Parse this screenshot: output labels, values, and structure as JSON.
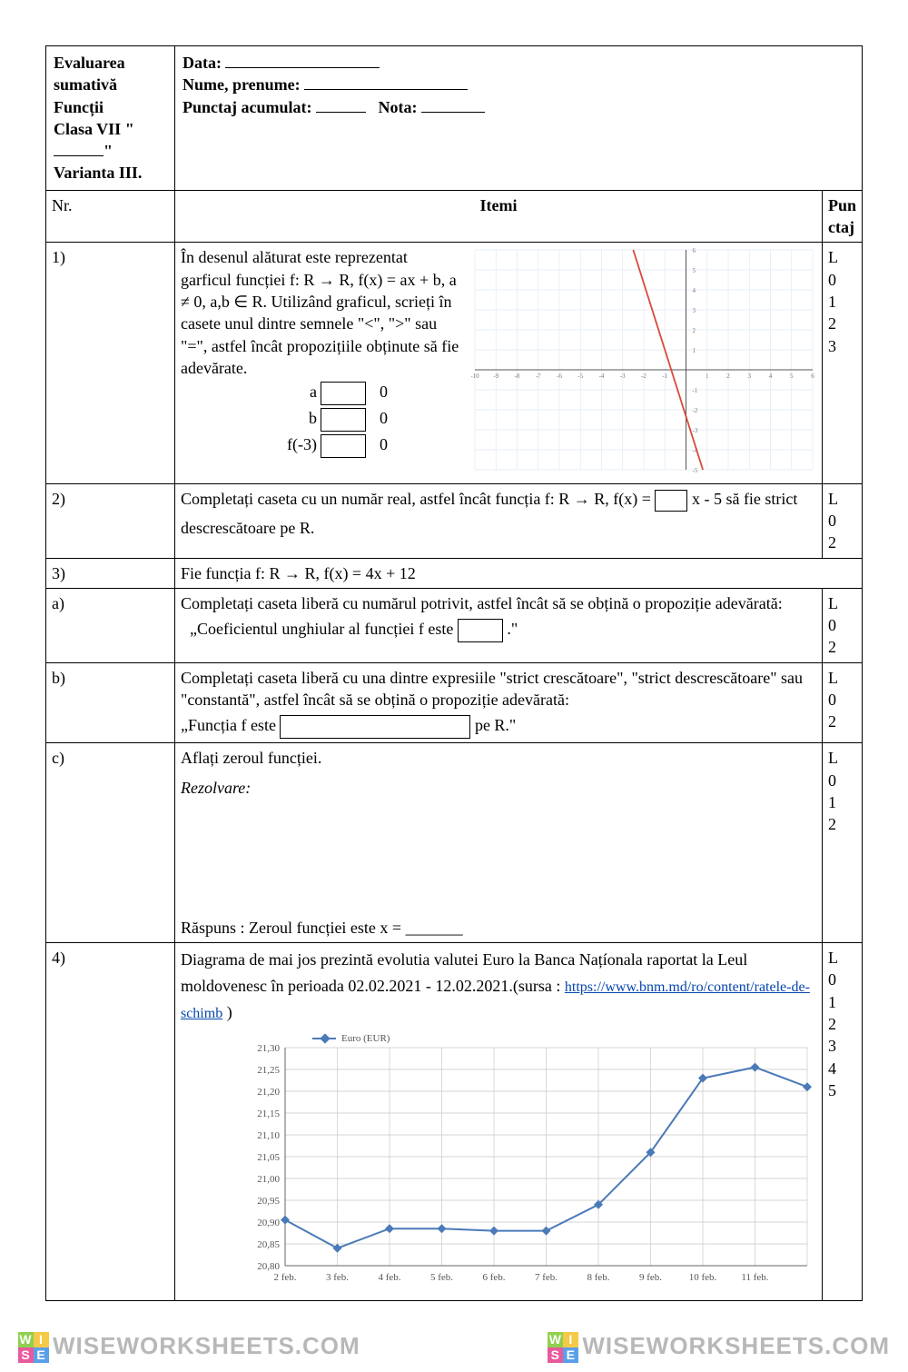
{
  "header": {
    "title_line1": "Evaluarea sumativă",
    "title_line2": "Funcții",
    "class_prefix": "Clasa VII \"",
    "class_suffix": "\"",
    "variant": "Varianta III.",
    "data_label": "Data:",
    "name_label": "Nume, prenume:",
    "score_label": "Punctaj acumulat:",
    "grade_label": "Nota:"
  },
  "columns": {
    "nr": "Nr.",
    "itemi": "Itemi",
    "punctaj": "Pun ctaj"
  },
  "item1": {
    "nr": "1)",
    "text_p1": "În desenul alăturat este reprezentat garficul funcției f: R → R, f(x) = ax + b, a ≠ 0, a,b ∈ R. Utilizând graficul, scrieți în casete unul dintre semnele \"<\", \">\" sau \"=\", astfel încât propozițiile obținute să fie adevărate.",
    "row_a_left": "a",
    "row_a_right": "0",
    "row_b_left": "b",
    "row_b_right": "0",
    "row_c_left": "f(-3)",
    "row_c_right": "0",
    "punctaj": "L\n0\n1\n2\n3",
    "graph": {
      "type": "line",
      "xlim": [
        -10,
        6
      ],
      "ylim": [
        -5,
        6
      ],
      "xtick_step": 1,
      "ytick_step": 1,
      "line_points": [
        [
          -2.5,
          6
        ],
        [
          0.8,
          -5
        ]
      ],
      "line_color": "#d94a3a",
      "line_width": 1.8,
      "grid_color": "#dfeaf4",
      "axis_color": "#555555",
      "tick_label_color": "#777777",
      "tick_fontsize": 7,
      "background_color": "#ffffff"
    }
  },
  "item2": {
    "nr": "2)",
    "text_before": "Completați caseta cu un număr real, astfel încât funcția f: R → R, f(x) = ",
    "text_after_box": " x  - 5 să fie strict",
    "text_line2": "descrescătoare pe R.",
    "punctaj": "L\n0\n2"
  },
  "item3": {
    "nr": "3)",
    "text": "Fie funcția f: R → R, f(x) = 4x + 12"
  },
  "item3a": {
    "nr": "a)",
    "line1": "Completați caseta liberă cu numărul potrivit, astfel încât să se obțină o propoziție adevărată:",
    "quote_before": "„Coeficientul unghiular al funcției f este ",
    "quote_after": " .\"",
    "punctaj": "L\n0\n2"
  },
  "item3b": {
    "nr": "b)",
    "line1": "Completați caseta liberă cu una dintre expresiile \"strict crescătoare\", \"strict descrescătoare\" sau \"constantă\", astfel încât să se obțină o propoziție adevărată:",
    "quote_before": "„Funcția f este ",
    "quote_after": " pe R.\"",
    "punctaj": "L\n0\n2"
  },
  "item3c": {
    "nr": "c)",
    "line1": "Aflați zeroul funcției.",
    "rezolvare": "Rezolvare:",
    "answer": "Răspuns : Zeroul funcției este x = _______",
    "punctaj": "L\n0\n1\n2"
  },
  "item4": {
    "nr": "4)",
    "text_before": "Diagrama de mai jos prezintă evolutia valutei Euro la Banca Națíonala raportat la Leul moldovenesc în perioada 02.02.2021  - 12.02.2021.(sursa : ",
    "link": "https://www.bnm.md/ro/content/ratele-de-schimb",
    "text_after": " )",
    "punctaj": "L\n0\n1\n2\n3\n4\n5",
    "chart": {
      "type": "line",
      "legend": "Euro (EUR)",
      "legend_marker_color": "#4a7ab8",
      "x_labels": [
        "2 feb.",
        "3 feb.",
        "4 feb.",
        "5 feb.",
        "6 feb.",
        "7 feb.",
        "8 feb.",
        "9 feb.",
        "10 feb.",
        "11 feb."
      ],
      "x_extra_point": true,
      "y_labels": [
        "20,80",
        "20,85",
        "20,90",
        "20,95",
        "21,00",
        "21,05",
        "21,10",
        "21,15",
        "21,20",
        "21,25",
        "21,30"
      ],
      "ylim": [
        20.8,
        21.3
      ],
      "ytick_step": 0.05,
      "values": [
        20.905,
        20.84,
        20.885,
        20.885,
        20.88,
        20.88,
        20.94,
        21.06,
        21.23,
        21.255,
        21.21
      ],
      "line_color": "#4a7ab8",
      "line_width": 2,
      "marker": "diamond",
      "marker_size": 5,
      "marker_color": "#4a7ab8",
      "grid_color": "#c9c9c9",
      "axis_color": "#666666",
      "tick_label_color": "#555555",
      "tick_fontsize": 11,
      "background_color": "#ffffff"
    }
  },
  "watermark": {
    "text": "WISEWORKSHEETS.COM",
    "badge_letters": [
      "W",
      "I",
      "S",
      "E"
    ],
    "badge_colors": [
      "#8fd14f",
      "#f7c948",
      "#e85a9b",
      "#5aa0e8"
    ]
  }
}
